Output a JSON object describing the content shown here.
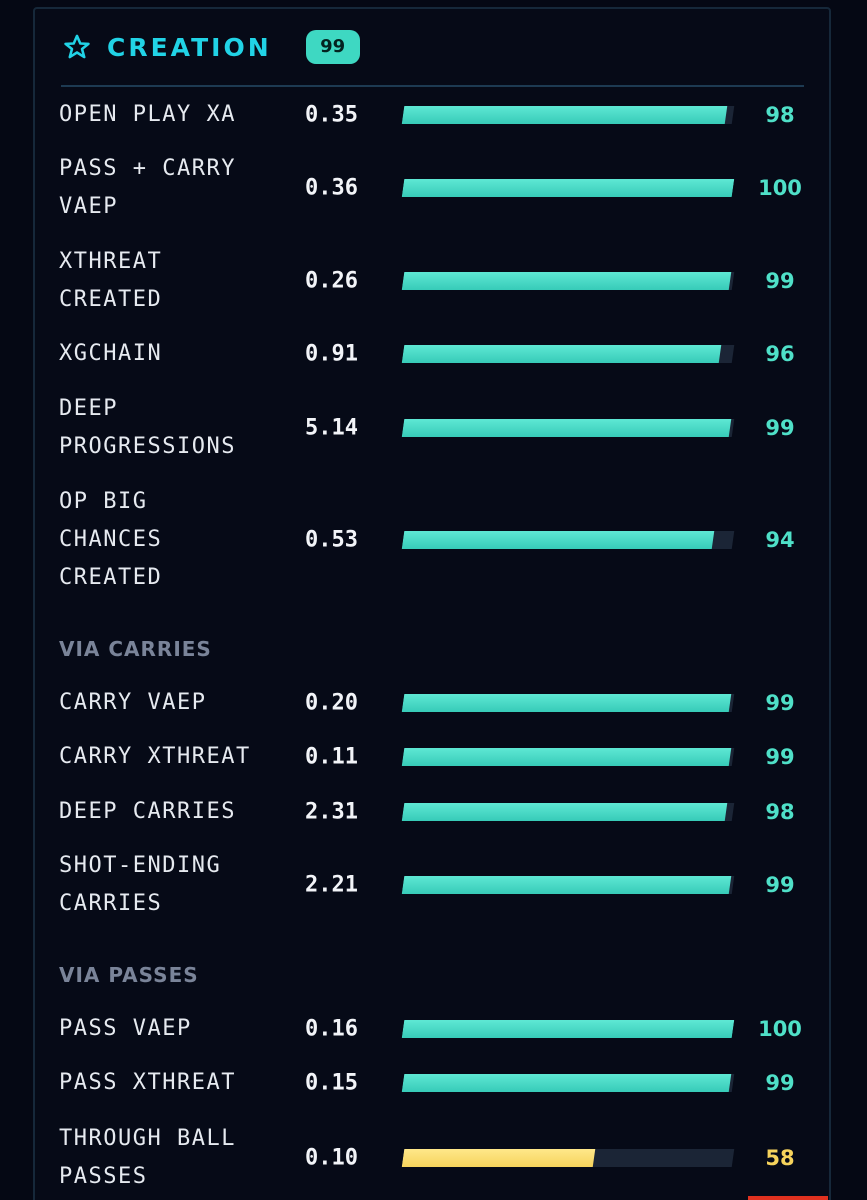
{
  "header": {
    "title": "CREATION",
    "score": "99",
    "icon": "star-icon",
    "accent_color": "#21d3e6",
    "badge_color": "#3ed8c2"
  },
  "sections": {
    "carries": "VIA CARRIES",
    "passes": "VIA PASSES"
  },
  "metrics": [
    {
      "label": "OPEN PLAY XA",
      "value": "0.35",
      "percentile": "98",
      "pct": 98
    },
    {
      "label": "PASS + CARRY\nVAEP",
      "value": "0.36",
      "percentile": "100",
      "pct": 100
    },
    {
      "label": "XTHREAT\nCREATED",
      "value": "0.26",
      "percentile": "99",
      "pct": 99
    },
    {
      "label": "XGCHAIN",
      "value": "0.91",
      "percentile": "96",
      "pct": 96
    },
    {
      "label": "DEEP\nPROGRESSIONS",
      "value": "5.14",
      "percentile": "99",
      "pct": 99
    },
    {
      "label": "OP BIG\nCHANCES\nCREATED",
      "value": "0.53",
      "percentile": "94",
      "pct": 94
    },
    {
      "label": "CARRY VAEP",
      "value": "0.20",
      "percentile": "99",
      "pct": 99
    },
    {
      "label": "CARRY XTHREAT",
      "value": "0.11",
      "percentile": "99",
      "pct": 99
    },
    {
      "label": "DEEP CARRIES",
      "value": "2.31",
      "percentile": "98",
      "pct": 98
    },
    {
      "label": "SHOT-ENDING\nCARRIES",
      "value": "2.21",
      "percentile": "99",
      "pct": 99
    },
    {
      "label": "PASS VAEP",
      "value": "0.16",
      "percentile": "100",
      "pct": 100
    },
    {
      "label": "PASS XTHREAT",
      "value": "0.15",
      "percentile": "99",
      "pct": 99
    },
    {
      "label": "THROUGH BALL\nPASSES",
      "value": "0.10",
      "percentile": "58",
      "pct": 58
    }
  ]
}
